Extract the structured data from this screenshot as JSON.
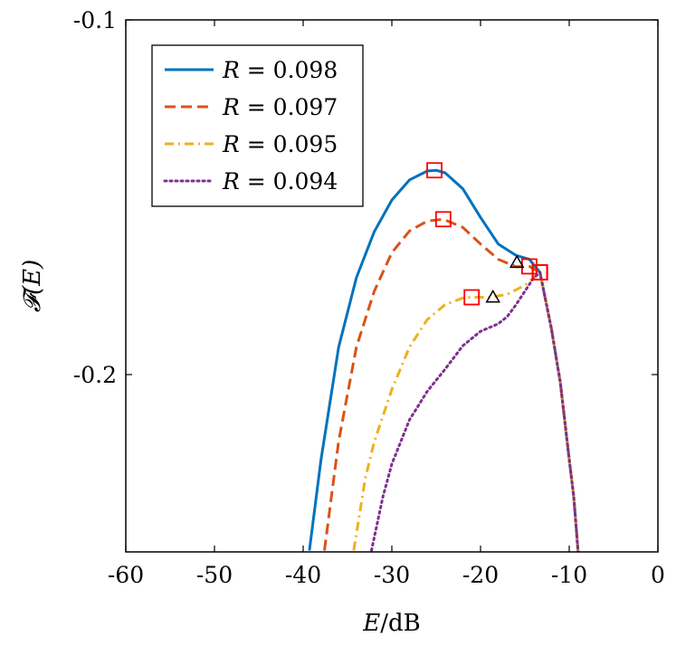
{
  "chart_data": {
    "type": "line",
    "xlabel": "E/dB",
    "xlabel_parts": {
      "var": "E",
      "unit": "/dB"
    },
    "ylabel": "𝓕(E)",
    "xlim": [
      -60,
      0
    ],
    "ylim": [
      -0.25,
      -0.1
    ],
    "xticks": [
      -60,
      -50,
      -40,
      -30,
      -20,
      -10,
      0
    ],
    "xtick_labels": [
      "-60",
      "-50",
      "-40",
      "-30",
      "-20",
      "-10",
      "0"
    ],
    "yticks": [
      -0.2,
      -0.1
    ],
    "ytick_labels": [
      "-0.2",
      "-0.1"
    ],
    "grid": false,
    "legend_position": "top-left",
    "series": [
      {
        "name": "R = 0.098",
        "legend_var": "R",
        "legend_value": "= 0.098",
        "color": "#0072BD",
        "dash": "solid",
        "x": [
          -39.3,
          -38,
          -36,
          -34,
          -32,
          -30,
          -28,
          -26,
          -25,
          -24,
          -22,
          -20,
          -18,
          -16,
          -14.5,
          -13.3,
          -12,
          -11,
          -10,
          -9.5,
          -9.2,
          -9
        ],
        "y": [
          -0.2496,
          -0.2242,
          -0.1923,
          -0.1727,
          -0.1598,
          -0.1508,
          -0.1451,
          -0.1426,
          -0.1424,
          -0.1431,
          -0.1476,
          -0.1557,
          -0.1632,
          -0.1664,
          -0.1675,
          -0.1712,
          -0.1872,
          -0.2023,
          -0.2239,
          -0.2342,
          -0.2432,
          -0.25
        ],
        "markers": [
          {
            "x": -25.2,
            "y": -0.1424,
            "symbol": "square"
          },
          {
            "x": -13.3,
            "y": -0.1712,
            "symbol": "square"
          }
        ]
      },
      {
        "name": "R = 0.097",
        "legend_var": "R",
        "legend_value": "= 0.097",
        "color": "#D95319",
        "dash": "dashed",
        "x": [
          -37.6,
          -36,
          -34,
          -32,
          -30,
          -28,
          -26,
          -24.2,
          -22,
          -20,
          -18,
          -16,
          -14.5,
          -13.3,
          -12,
          -11,
          -10,
          -9.5,
          -9
        ],
        "y": [
          -0.2496,
          -0.2188,
          -0.1923,
          -0.1766,
          -0.1656,
          -0.1595,
          -0.1567,
          -0.1562,
          -0.1585,
          -0.1632,
          -0.1675,
          -0.1696,
          -0.1695,
          -0.1712,
          -0.1872,
          -0.2023,
          -0.2239,
          -0.2342,
          -0.25
        ],
        "markers": [
          {
            "x": -24.2,
            "y": -0.1562,
            "symbol": "square"
          },
          {
            "x": -14.5,
            "y": -0.1695,
            "symbol": "square"
          },
          {
            "x": -13.3,
            "y": -0.1712,
            "symbol": "square"
          }
        ]
      },
      {
        "name": "R = 0.095",
        "legend_var": "R",
        "legend_value": "= 0.095",
        "color": "#EDB120",
        "dash": "dashdot",
        "x": [
          -34.3,
          -33,
          -32,
          -30,
          -28,
          -26,
          -24,
          -22,
          -21,
          -19,
          -17,
          -15,
          -14,
          -13.3,
          -12,
          -11,
          -10,
          -9.5,
          -9
        ],
        "y": [
          -0.2496,
          -0.2293,
          -0.2191,
          -0.2042,
          -0.1922,
          -0.1845,
          -0.1803,
          -0.1784,
          -0.1782,
          -0.1782,
          -0.1774,
          -0.1748,
          -0.1727,
          -0.1712,
          -0.1872,
          -0.2023,
          -0.2239,
          -0.2342,
          -0.25
        ],
        "markers": [
          {
            "x": -21.0,
            "y": -0.1782,
            "symbol": "square"
          },
          {
            "x": -18.6,
            "y": -0.1782,
            "symbol": "triangle"
          }
        ]
      },
      {
        "name": "R = 0.094",
        "legend_var": "R",
        "legend_value": "= 0.094",
        "color": "#7E2F8E",
        "dash": "dotted",
        "x": [
          -32.3,
          -31,
          -30,
          -28,
          -26,
          -24,
          -22,
          -20,
          -18,
          -17,
          -16,
          -15,
          -14,
          -13.3,
          -12,
          -11,
          -10,
          -9.5,
          -9
        ],
        "y": [
          -0.2496,
          -0.2344,
          -0.2252,
          -0.2127,
          -0.2047,
          -0.1985,
          -0.1919,
          -0.1878,
          -0.1857,
          -0.1837,
          -0.1803,
          -0.1765,
          -0.1727,
          -0.1712,
          -0.1872,
          -0.2023,
          -0.2239,
          -0.2342,
          -0.25
        ],
        "markers": [
          {
            "x": -13.3,
            "y": -0.1712,
            "symbol": "square"
          }
        ]
      }
    ],
    "extra_markers": [
      {
        "x": -15.9,
        "y": -0.1684,
        "symbol": "triangle"
      },
      {
        "x": -13.3,
        "y": -0.1712,
        "symbol": "square"
      }
    ]
  }
}
